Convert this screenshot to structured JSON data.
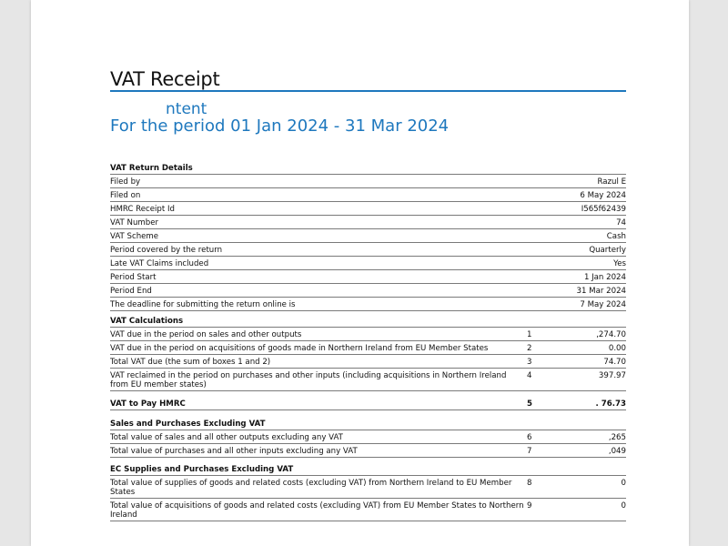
{
  "header": {
    "title": "VAT Receipt",
    "subtitle_partial": "ntent",
    "period": "For the period 01 Jan 2024 - 31 Mar 2024"
  },
  "return_details": {
    "heading": "VAT Return Details",
    "rows": [
      {
        "label": "Filed by",
        "value": "Razul E"
      },
      {
        "label": "Filed on",
        "value": "6 May 2024"
      },
      {
        "label": "HMRC Receipt Id",
        "value": "I565f62439"
      },
      {
        "label": "VAT Number",
        "value": "74"
      },
      {
        "label": "VAT Scheme",
        "value": "Cash"
      },
      {
        "label": "Period covered by the return",
        "value": "Quarterly"
      },
      {
        "label": "Late VAT Claims included",
        "value": "Yes"
      },
      {
        "label": "Period Start",
        "value": "1 Jan 2024"
      },
      {
        "label": "Period End",
        "value": "31 Mar 2024"
      },
      {
        "label": "The deadline for submitting the return online is",
        "value": "7 May 2024"
      }
    ]
  },
  "vat_calculations": {
    "heading": "VAT Calculations",
    "rows": [
      {
        "label": "VAT due in the period on sales and other outputs",
        "box": "1",
        "amount": ",274.70"
      },
      {
        "label": "VAT due in the period on acquisitions of goods made in Northern Ireland from EU Member States",
        "box": "2",
        "amount": "0.00"
      },
      {
        "label": "Total VAT due (the sum of boxes 1 and 2)",
        "box": "3",
        "amount": "74.70"
      },
      {
        "label": "VAT reclaimed in the period on purchases and other inputs (including acquisitions in Northern Ireland from EU member states)",
        "box": "4",
        "amount": "397.97"
      },
      {
        "label": "VAT to Pay HMRC",
        "box": "5",
        "amount": ". 76.73"
      }
    ]
  },
  "sales_purchases": {
    "heading": "Sales and Purchases Excluding VAT",
    "rows": [
      {
        "label": "Total value of sales and all other outputs excluding any VAT",
        "box": "6",
        "amount": ",265"
      },
      {
        "label": "Total value of purchases and all other inputs excluding any VAT",
        "box": "7",
        "amount": ",049"
      }
    ]
  },
  "ec_supplies": {
    "heading": "EC Supplies and Purchases Excluding VAT",
    "rows": [
      {
        "label": "Total value of supplies of goods and related costs (excluding VAT) from Northern Ireland to EU Member States",
        "box": "8",
        "amount": "0"
      },
      {
        "label": "Total value of acquisitions of goods and related costs (excluding VAT) from EU Member States to Northern Ireland",
        "box": "9",
        "amount": "0"
      }
    ]
  }
}
